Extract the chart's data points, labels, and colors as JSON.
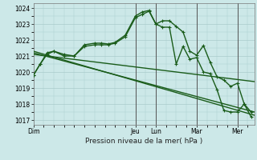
{
  "background_color": "#cce8e8",
  "grid_color": "#aacccc",
  "line_color": "#1a5c1a",
  "xlabel": "Pression niveau de la mer( hPa )",
  "yticks": [
    1017,
    1018,
    1019,
    1020,
    1021,
    1022,
    1023,
    1024
  ],
  "ylim": [
    1016.7,
    1024.3
  ],
  "xtick_labels": [
    "Dim",
    "Jeu",
    "Lun",
    "Mar",
    "Mer"
  ],
  "xtick_positions": [
    0,
    60,
    72,
    96,
    120
  ],
  "xlim": [
    0,
    130
  ],
  "series": [
    {
      "x": [
        0,
        4,
        8,
        12,
        18,
        24,
        30,
        36,
        40,
        44,
        48,
        54,
        60,
        64,
        68,
        72,
        76,
        80,
        84,
        88,
        92,
        96,
        100,
        104,
        108,
        112,
        116,
        120,
        124,
        128
      ],
      "y": [
        1019.8,
        1020.5,
        1021.2,
        1021.3,
        1021.1,
        1021.0,
        1021.7,
        1021.8,
        1021.8,
        1021.75,
        1021.85,
        1022.3,
        1023.5,
        1023.75,
        1023.85,
        1023.0,
        1023.2,
        1023.2,
        1022.85,
        1022.5,
        1021.3,
        1021.05,
        1021.65,
        1020.6,
        1019.7,
        1019.5,
        1019.1,
        1019.3,
        1018.0,
        1017.5
      ],
      "marker": "+",
      "linewidth": 1.0,
      "markersize": 3.5
    },
    {
      "x": [
        0,
        4,
        8,
        12,
        18,
        24,
        30,
        36,
        40,
        44,
        48,
        54,
        60,
        64,
        68,
        72,
        76,
        80,
        84,
        88,
        92,
        96,
        100,
        104,
        108,
        112,
        116,
        120,
        124,
        128
      ],
      "y": [
        1019.8,
        1020.5,
        1021.1,
        1021.3,
        1021.0,
        1021.0,
        1021.6,
        1021.7,
        1021.7,
        1021.7,
        1021.8,
        1022.2,
        1023.4,
        1023.6,
        1023.8,
        1023.0,
        1022.8,
        1022.8,
        1020.5,
        1021.6,
        1020.8,
        1020.9,
        1020.0,
        1019.9,
        1018.9,
        1017.6,
        1017.5,
        1017.5,
        1018.0,
        1017.2
      ],
      "marker": "+",
      "linewidth": 1.0,
      "markersize": 3.5
    },
    {
      "x": [
        0,
        130
      ],
      "y": [
        1021.3,
        1017.3
      ],
      "marker": null,
      "linewidth": 1.0,
      "markersize": 0
    },
    {
      "x": [
        0,
        130
      ],
      "y": [
        1021.2,
        1017.5
      ],
      "marker": null,
      "linewidth": 1.0,
      "markersize": 0
    },
    {
      "x": [
        0,
        130
      ],
      "y": [
        1021.1,
        1019.4
      ],
      "marker": null,
      "linewidth": 1.0,
      "markersize": 0
    }
  ],
  "vlines": [
    60,
    72,
    96,
    120
  ],
  "vline_color": "#555555",
  "vline_linewidth": 0.7
}
